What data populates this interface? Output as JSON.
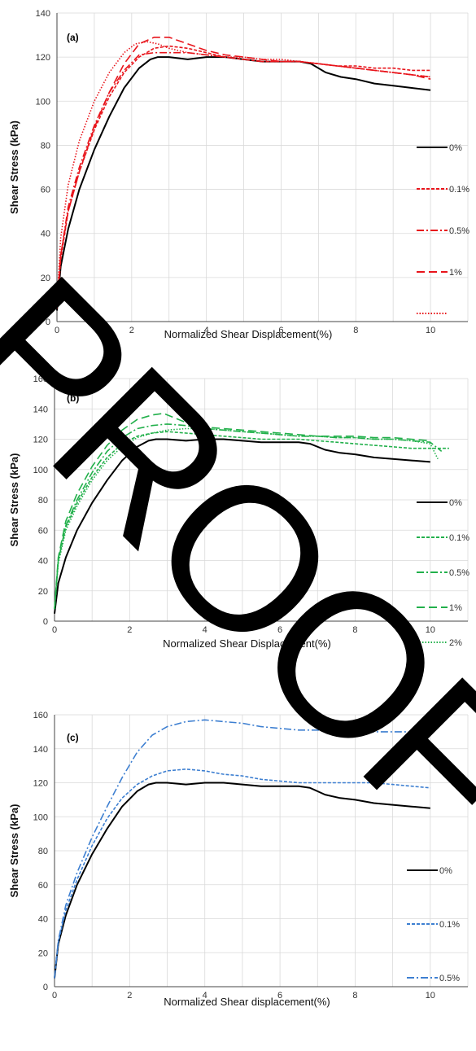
{
  "watermark": "PROOF",
  "colors": {
    "a": "#e8141b",
    "b": "#22b04b",
    "c": "#3d7fd1",
    "base": "#000000",
    "grid": "#d9d9d9"
  },
  "chart_data": [
    {
      "type": "line",
      "panel_label": "(a)",
      "xlabel": "Normalized Shear Displacement(%)",
      "ylabel": "Shear Stress (kPa)",
      "xlim": [
        0,
        11
      ],
      "ylim": [
        0,
        140
      ],
      "xticks": [
        0,
        2,
        4,
        6,
        8,
        10
      ],
      "yticks": [
        0,
        20,
        40,
        60,
        80,
        100,
        120,
        140
      ],
      "grid": true,
      "legend": "right",
      "series": [
        {
          "name": "0%",
          "color": "#000000",
          "dash": "solid",
          "x": [
            0,
            0.1,
            0.3,
            0.6,
            1.0,
            1.4,
            1.8,
            2.2,
            2.5,
            2.7,
            3.0,
            3.5,
            4.0,
            4.5,
            5.0,
            5.5,
            6.0,
            6.5,
            6.8,
            7.2,
            7.6,
            8.0,
            8.5,
            9.0,
            9.5,
            10.0
          ],
          "y": [
            5,
            25,
            42,
            60,
            78,
            93,
            106,
            115,
            119,
            120,
            120,
            119,
            120,
            120,
            119,
            118,
            118,
            118,
            117,
            113,
            111,
            110,
            108,
            107,
            106,
            105
          ]
        },
        {
          "name": "0.1%",
          "color": "#e8141b",
          "dash": "4,2",
          "x": [
            0,
            0.1,
            0.3,
            0.6,
            1.0,
            1.4,
            1.8,
            2.2,
            2.6,
            3.0,
            3.5,
            4.0,
            4.5,
            5.0,
            5.5,
            6.0,
            6.5,
            7.0,
            7.5,
            8.0,
            8.5,
            9.0,
            9.5,
            10.0
          ],
          "y": [
            6,
            28,
            50,
            68,
            87,
            102,
            113,
            120,
            124,
            125,
            124,
            122,
            120,
            119,
            118,
            118,
            118,
            117,
            116,
            116,
            115,
            115,
            114,
            114
          ]
        },
        {
          "name": "0.5%",
          "color": "#e8141b",
          "dash": "9,3,2,3",
          "x": [
            0,
            0.1,
            0.3,
            0.6,
            1.0,
            1.4,
            1.8,
            2.2,
            2.6,
            3.0,
            3.5,
            4.0,
            4.5,
            5.0,
            5.5,
            6.0,
            6.5,
            7.0,
            7.5,
            8.0,
            8.5,
            9.0,
            9.5,
            10.0
          ],
          "y": [
            7,
            30,
            52,
            70,
            89,
            104,
            114,
            121,
            122,
            122,
            122,
            121,
            120,
            119,
            118,
            118,
            118,
            117,
            116,
            115,
            114,
            113,
            112,
            111
          ]
        },
        {
          "name": "1%",
          "color": "#e8141b",
          "dash": "10,5",
          "x": [
            0,
            0.1,
            0.3,
            0.6,
            1.0,
            1.4,
            1.8,
            2.2,
            2.6,
            3.0,
            3.5,
            4.0,
            4.5,
            5.0,
            5.5,
            6.0,
            6.5,
            7.0,
            7.5,
            8.0,
            8.5,
            9.0,
            9.5,
            10.0
          ],
          "y": [
            7,
            30,
            50,
            68,
            88,
            104,
            117,
            126,
            129,
            129,
            126,
            123,
            121,
            120,
            119,
            118,
            118,
            117,
            116,
            115,
            114,
            113,
            112,
            110
          ]
        },
        {
          "name": "",
          "color": "#e8141b",
          "dash": "1.5,2",
          "x": [
            0,
            0.1,
            0.3,
            0.6,
            1.0,
            1.4,
            1.8,
            2.1,
            2.4,
            2.7,
            3.0,
            3.5,
            4.0,
            4.5,
            5.0,
            5.5,
            6.0,
            6.5,
            7.0,
            7.5,
            8.0,
            8.5,
            9.0,
            9.5,
            10.0
          ],
          "y": [
            8,
            38,
            62,
            82,
            100,
            113,
            122,
            126,
            127,
            126,
            124,
            122,
            121,
            120,
            120,
            119,
            119,
            118,
            117,
            116,
            115,
            114,
            113,
            112,
            111
          ]
        }
      ]
    },
    {
      "type": "line",
      "panel_label": "(b)",
      "xlabel": "Normalized Shear Displacement(%)",
      "ylabel": "Shear Stress (kPa)",
      "xlim": [
        0,
        11
      ],
      "ylim": [
        0,
        160
      ],
      "xticks": [
        0,
        2,
        4,
        6,
        8,
        10
      ],
      "yticks": [
        0,
        20,
        40,
        60,
        80,
        100,
        120,
        140,
        160
      ],
      "grid": true,
      "legend": "right",
      "series": [
        {
          "name": "0%",
          "color": "#000000",
          "dash": "solid",
          "x": [
            0,
            0.1,
            0.3,
            0.6,
            1.0,
            1.4,
            1.8,
            2.2,
            2.5,
            2.7,
            3.0,
            3.5,
            4.0,
            4.5,
            5.0,
            5.5,
            6.0,
            6.5,
            6.8,
            7.2,
            7.6,
            8.0,
            8.5,
            9.0,
            9.5,
            10.0
          ],
          "y": [
            5,
            25,
            42,
            60,
            78,
            93,
            106,
            115,
            119,
            120,
            120,
            119,
            120,
            120,
            119,
            118,
            118,
            118,
            117,
            113,
            111,
            110,
            108,
            107,
            106,
            105
          ]
        },
        {
          "name": "0.1%",
          "color": "#22b04b",
          "dash": "4,2",
          "x": [
            0,
            0.1,
            0.3,
            0.6,
            1.0,
            1.4,
            1.8,
            2.2,
            2.6,
            3.0,
            3.5,
            4.0,
            4.5,
            5.0,
            5.5,
            6.0,
            6.5,
            7.0,
            7.5,
            8.0,
            8.5,
            9.0,
            9.5,
            10.0,
            10.5
          ],
          "y": [
            8,
            40,
            62,
            78,
            95,
            108,
            117,
            122,
            124,
            125,
            124,
            123,
            122,
            121,
            120,
            120,
            120,
            119,
            118,
            117,
            116,
            115,
            114,
            114,
            114
          ]
        },
        {
          "name": "0.5%",
          "color": "#22b04b",
          "dash": "9,3,2,3",
          "x": [
            0,
            0.1,
            0.3,
            0.6,
            1.0,
            1.4,
            1.8,
            2.2,
            2.6,
            3.0,
            3.5,
            4.0,
            4.5,
            5.0,
            5.5,
            6.0,
            6.5,
            7.0,
            7.5,
            8.0,
            8.5,
            9.0,
            9.5,
            10.0,
            10.3
          ],
          "y": [
            8,
            40,
            63,
            80,
            98,
            112,
            121,
            127,
            129,
            130,
            129,
            127,
            126,
            125,
            124,
            123,
            122,
            122,
            121,
            121,
            120,
            120,
            119,
            118,
            112
          ]
        },
        {
          "name": "1%",
          "color": "#22b04b",
          "dash": "10,5",
          "x": [
            0,
            0.1,
            0.3,
            0.6,
            1.0,
            1.4,
            1.8,
            2.2,
            2.6,
            2.9,
            3.2,
            3.6,
            4.0,
            4.5,
            5.0,
            5.5,
            6.0,
            6.5,
            7.0,
            7.5,
            8.0,
            8.5,
            9.0,
            9.5,
            10.0
          ],
          "y": [
            8,
            42,
            66,
            84,
            102,
            116,
            126,
            133,
            136,
            137,
            134,
            130,
            128,
            127,
            126,
            125,
            124,
            123,
            122,
            122,
            122,
            121,
            121,
            120,
            119
          ]
        },
        {
          "name": "2%",
          "color": "#22b04b",
          "dash": "1.5,2",
          "x": [
            0,
            0.1,
            0.3,
            0.6,
            1.0,
            1.4,
            1.8,
            2.2,
            2.6,
            3.0,
            3.5,
            4.0,
            4.5,
            5.0,
            5.5,
            6.0,
            6.5,
            7.0,
            7.5,
            8.0,
            8.5,
            9.0,
            9.5,
            10.0,
            10.2
          ],
          "y": [
            8,
            38,
            60,
            76,
            93,
            106,
            115,
            121,
            124,
            126,
            127,
            127,
            126,
            125,
            124,
            123,
            122,
            122,
            121,
            121,
            120,
            120,
            119,
            117,
            107
          ]
        }
      ]
    },
    {
      "type": "line",
      "panel_label": "(c)",
      "xlabel": "Normalized Shear displacement(%)",
      "ylabel": "Shear Stress (kPa)",
      "xlim": [
        0,
        11
      ],
      "ylim": [
        0,
        160
      ],
      "xticks": [
        0,
        2,
        4,
        6,
        8,
        10
      ],
      "yticks": [
        0,
        20,
        40,
        60,
        80,
        100,
        120,
        140,
        160
      ],
      "grid": true,
      "legend": "right",
      "series": [
        {
          "name": "0%",
          "color": "#000000",
          "dash": "solid",
          "x": [
            0,
            0.1,
            0.3,
            0.6,
            1.0,
            1.4,
            1.8,
            2.2,
            2.5,
            2.7,
            3.0,
            3.5,
            4.0,
            4.5,
            5.0,
            5.5,
            6.0,
            6.5,
            6.8,
            7.2,
            7.6,
            8.0,
            8.5,
            9.0,
            9.5,
            10.0
          ],
          "y": [
            5,
            25,
            42,
            60,
            78,
            93,
            106,
            115,
            119,
            120,
            120,
            119,
            120,
            120,
            119,
            118,
            118,
            118,
            117,
            113,
            111,
            110,
            108,
            107,
            106,
            105
          ]
        },
        {
          "name": "0.1%",
          "color": "#3d7fd1",
          "dash": "4,2",
          "x": [
            0,
            0.1,
            0.3,
            0.6,
            1.0,
            1.4,
            1.8,
            2.2,
            2.6,
            3.0,
            3.5,
            4.0,
            4.5,
            5.0,
            5.5,
            6.0,
            6.5,
            7.0,
            7.5,
            8.0,
            8.5,
            9.0,
            9.5,
            10.0
          ],
          "y": [
            5,
            26,
            45,
            63,
            83,
            99,
            111,
            119,
            124,
            127,
            128,
            127,
            125,
            124,
            122,
            121,
            120,
            120,
            120,
            120,
            120,
            119,
            118,
            117
          ]
        },
        {
          "name": "0.5%",
          "color": "#3d7fd1",
          "dash": "9,3,2,3",
          "x": [
            0,
            0.1,
            0.3,
            0.6,
            1.0,
            1.4,
            1.8,
            2.2,
            2.6,
            3.0,
            3.5,
            4.0,
            4.5,
            5.0,
            5.5,
            6.0,
            6.5,
            7.0,
            7.5,
            8.0,
            8.5,
            9.0,
            9.5,
            10.0
          ],
          "y": [
            5,
            27,
            48,
            67,
            88,
            106,
            123,
            138,
            148,
            153,
            156,
            157,
            156,
            155,
            153,
            152,
            151,
            151,
            150,
            150,
            150,
            150,
            150,
            149
          ]
        }
      ]
    }
  ]
}
